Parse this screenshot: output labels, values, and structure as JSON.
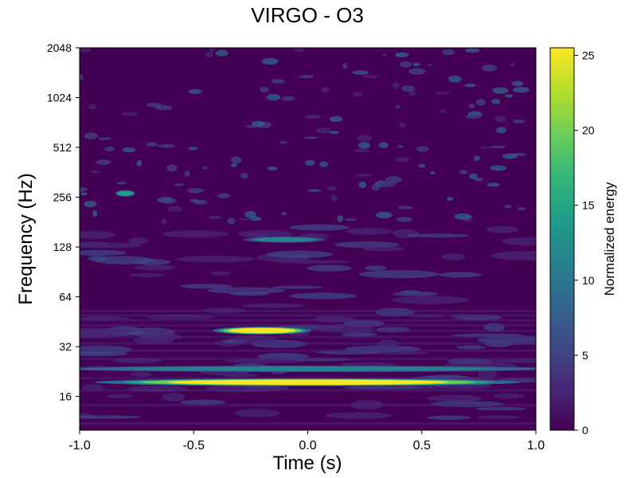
{
  "chart_data": {
    "type": "heatmap",
    "title": "VIRGO - O3",
    "xlabel": "Time (s)",
    "ylabel": "Frequency (Hz)",
    "xlim": [
      -1.0,
      1.0
    ],
    "ylim": [
      10,
      2048
    ],
    "yscale": "log2",
    "x_ticks": [
      -1.0,
      -0.5,
      0.0,
      0.5,
      1.0
    ],
    "x_tick_labels": [
      "-1.0",
      "-0.5",
      "0.0",
      "0.5",
      "1.0"
    ],
    "y_ticks": [
      16,
      32,
      64,
      128,
      256,
      512,
      1024,
      2048
    ],
    "y_tick_labels": [
      "16",
      "32",
      "64",
      "128",
      "256",
      "512",
      "1024",
      "2048"
    ],
    "colorbar": {
      "label": "Normalized energy",
      "range": [
        0,
        25.5
      ],
      "ticks": [
        0,
        5,
        10,
        15,
        20,
        25
      ],
      "tick_labels": [
        "0",
        "5",
        "10",
        "15",
        "20",
        "25"
      ],
      "colormap": [
        "#440154",
        "#482878",
        "#3e4989",
        "#31688e",
        "#26828e",
        "#1f9e89",
        "#35b779",
        "#6ece58",
        "#b5de2b",
        "#fde725"
      ]
    },
    "features": [
      {
        "t_center": 0.0,
        "t_width": 1.6,
        "freq": 19.5,
        "energy": 25,
        "label": "continuous line"
      },
      {
        "t_center": 0.0,
        "t_width": 2.0,
        "freq": 23.5,
        "energy": 12,
        "label": "continuous line"
      },
      {
        "t_center": -0.2,
        "t_width": 0.35,
        "freq": 40,
        "energy": 25,
        "label": "burst"
      },
      {
        "t_center": -0.1,
        "t_width": 0.3,
        "freq": 142,
        "energy": 11,
        "label": "blob"
      },
      {
        "t_center": -0.8,
        "t_width": 0.05,
        "freq": 270,
        "energy": 14,
        "label": "blob"
      }
    ]
  }
}
